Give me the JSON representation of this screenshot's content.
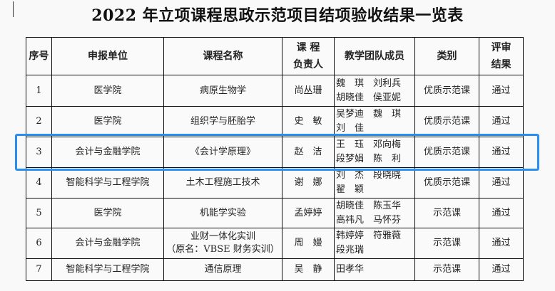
{
  "title": "2022 年立项课程思政示范项目结项验收结果一览表",
  "headers": [
    "序号",
    "申报单位",
    "课程名称",
    "课 程\n负责人",
    "教学团队成员",
    "类别",
    "评审\n结果"
  ],
  "rows": [
    {
      "no": "1",
      "unit": "医学院",
      "course": "病原生物学",
      "lead": "尚丛珊",
      "team": "魏　琪　刘利兵\n胡晓佳　侯亚妮",
      "category": "优质示范课",
      "result": "通过"
    },
    {
      "no": "2",
      "unit": "医学院",
      "course": "组织学与胚胎学",
      "lead": "史　敏",
      "team": "吴梦迪　魏　琪\n刘　佳",
      "category": "优质示范课",
      "result": "通过"
    },
    {
      "no": "3",
      "unit": "会计与金融学院",
      "course": "《会计学原理》",
      "lead": "赵　洁",
      "team": "王　珏　邓向梅\n段梦娟　陈　利",
      "category": "优质示范课",
      "result": "通过"
    },
    {
      "no": "4",
      "unit": "智能科学与工程学院",
      "course": "土木工程施工技术",
      "lead": "谢　娜",
      "team": "刘　杰　段晓晓\n翟　颖",
      "category": "优质示范课",
      "result": "通过"
    },
    {
      "no": "5",
      "unit": "医学院",
      "course": "机能学实验",
      "lead": "孟婷婷",
      "team": "胡晓佳　陈玉华\n高祎凡　马怀芬",
      "category": "示范课",
      "result": "通过"
    },
    {
      "no": "6",
      "unit": "会计与金融学院",
      "course": "业财一体化实训\n（原名：VBSE 财务实训）",
      "lead": "周　嫚",
      "team": "韩婷婷　符雅薇\n段兆瑞",
      "category": "示范课",
      "result": "通过"
    },
    {
      "no": "7",
      "unit": "智能科学与工程学院",
      "course": "通信原理",
      "lead": "吴　静",
      "team": "田孝华",
      "category": "示范课",
      "result": "通过"
    }
  ],
  "highlight_color": "#2a8ef0",
  "highlighted_row": "3"
}
